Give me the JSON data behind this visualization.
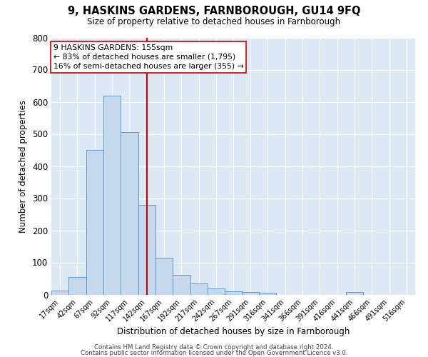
{
  "title": "9, HASKINS GARDENS, FARNBOROUGH, GU14 9FQ",
  "subtitle": "Size of property relative to detached houses in Farnborough",
  "xlabel": "Distribution of detached houses by size in Farnborough",
  "ylabel": "Number of detached properties",
  "bar_color": "#c5d8ed",
  "bar_edge_color": "#5b9bd5",
  "background_color": "#dde8f5",
  "vline_color": "#cc0000",
  "vline_x": 155,
  "annotation_line1": "9 HASKINS GARDENS: 155sqm",
  "annotation_line2": "← 83% of detached houses are smaller (1,795)",
  "annotation_line3": "16% of semi-detached houses are larger (355) →",
  "annotation_box_color": "#ffffff",
  "annotation_box_edge": "#cc0000",
  "footer_line1": "Contains HM Land Registry data © Crown copyright and database right 2024.",
  "footer_line2": "Contains public sector information licensed under the Open Government Licence v3.0.",
  "categories": [
    "17sqm",
    "42sqm",
    "67sqm",
    "92sqm",
    "117sqm",
    "142sqm",
    "167sqm",
    "192sqm",
    "217sqm",
    "242sqm",
    "267sqm",
    "291sqm",
    "316sqm",
    "341sqm",
    "366sqm",
    "391sqm",
    "416sqm",
    "441sqm",
    "466sqm",
    "491sqm",
    "516sqm"
  ],
  "bin_starts": [
    17,
    42,
    67,
    92,
    117,
    142,
    167,
    192,
    217,
    242,
    267,
    291,
    316,
    341,
    366,
    391,
    416,
    441,
    466,
    491,
    516
  ],
  "bin_width": 25,
  "values": [
    12,
    55,
    450,
    620,
    505,
    280,
    115,
    62,
    35,
    20,
    10,
    8,
    5,
    0,
    0,
    0,
    0,
    8,
    0,
    0,
    0
  ],
  "ylim": [
    0,
    800
  ],
  "yticks": [
    0,
    100,
    200,
    300,
    400,
    500,
    600,
    700,
    800
  ]
}
